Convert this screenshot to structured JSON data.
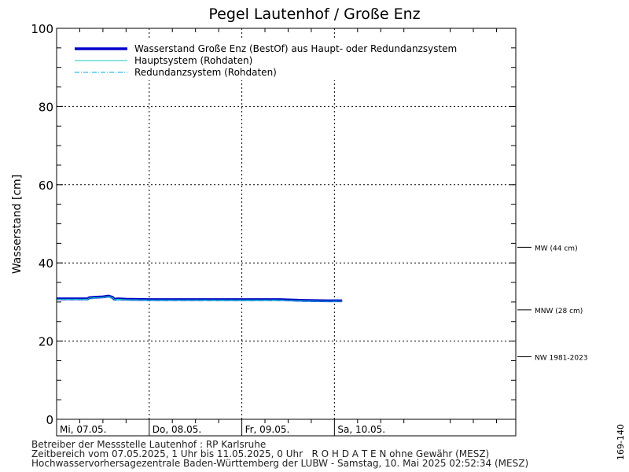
{
  "chart_data": {
    "type": "line",
    "title": "Pegel Lautenhof / Große Enz",
    "ylabel": "Wasserstand [cm]",
    "xlabel": "",
    "ylim": [
      0,
      100
    ],
    "xlim_hours": [
      0,
      119
    ],
    "y_ticks": [
      0,
      20,
      40,
      60,
      80,
      100
    ],
    "x_ticks": [
      {
        "hour": 0,
        "label": "Mi, 07.05."
      },
      {
        "hour": 24,
        "label": "Do, 08.05."
      },
      {
        "hour": 48,
        "label": "Fr, 09.05."
      },
      {
        "hour": 72,
        "label": "Sa, 10.05."
      }
    ],
    "grid": true,
    "legend_position": "top-left",
    "legend": [
      {
        "label": "Wasserstand Große Enz  (BestOf)  aus Haupt- oder Redundanzsystem",
        "style": "thick",
        "color": "#0000cc"
      },
      {
        "label": "Hauptsystem (Rohdaten)",
        "style": "solid",
        "color": "#1fc9b0"
      },
      {
        "label": "Redundanzsystem (Rohdaten)",
        "style": "dashdot",
        "color": "#00a8e8"
      }
    ],
    "series": [
      {
        "name": "Wasserstand Große Enz  (BestOf)  aus Haupt- oder Redundanzsystem",
        "color": "#0000cc",
        "points": [
          [
            0,
            30.8
          ],
          [
            4,
            30.8
          ],
          [
            8,
            30.8
          ],
          [
            8.5,
            31.1
          ],
          [
            10,
            31.2
          ],
          [
            12,
            31.3
          ],
          [
            13.5,
            31.5
          ],
          [
            14.5,
            31.2
          ],
          [
            15,
            30.7
          ],
          [
            16,
            30.8
          ],
          [
            18,
            30.7
          ],
          [
            24,
            30.6
          ],
          [
            36,
            30.6
          ],
          [
            48,
            30.6
          ],
          [
            58,
            30.6
          ],
          [
            64,
            30.4
          ],
          [
            70,
            30.3
          ],
          [
            74,
            30.3
          ]
        ]
      },
      {
        "name": "Hauptsystem (Rohdaten)",
        "color": "#1fc9b0",
        "points": [
          [
            0,
            30.7
          ],
          [
            4,
            30.7
          ],
          [
            8,
            30.7
          ],
          [
            8.5,
            31.0
          ],
          [
            10,
            31.1
          ],
          [
            12,
            31.2
          ],
          [
            13.5,
            31.4
          ],
          [
            14.5,
            31.1
          ],
          [
            15,
            30.6
          ],
          [
            16,
            30.7
          ],
          [
            18,
            30.6
          ],
          [
            24,
            30.5
          ],
          [
            36,
            30.5
          ],
          [
            48,
            30.5
          ],
          [
            58,
            30.5
          ],
          [
            64,
            30.3
          ],
          [
            70,
            30.2
          ],
          [
            74,
            30.2
          ]
        ]
      },
      {
        "name": "Redundanzsystem (Rohdaten)",
        "color": "#00a8e8",
        "points": [
          [
            0,
            30.6
          ],
          [
            8,
            30.6
          ],
          [
            10,
            31.0
          ],
          [
            12,
            31.1
          ],
          [
            13.5,
            31.3
          ],
          [
            15,
            30.5
          ],
          [
            18,
            30.5
          ],
          [
            24,
            30.4
          ],
          [
            36,
            30.4
          ],
          [
            48,
            30.3
          ],
          [
            58,
            30.4
          ],
          [
            64,
            30.2
          ],
          [
            74,
            30.1
          ]
        ]
      }
    ],
    "reference_lines": [
      {
        "label": "MW (44 cm)",
        "value": 44
      },
      {
        "label": "MNW (28 cm)",
        "value": 28
      },
      {
        "label": "NW 1981-2023",
        "value": 16
      }
    ]
  },
  "footer": {
    "line1": "Betreiber der Messstelle Lautenhof : RP Karlsruhe",
    "line2": "Zeitbereich vom 07.05.2025, 1 Uhr bis 11.05.2025, 0 Uhr   R O H D A T E N ohne Gewähr (MESZ)",
    "line3": "Hochwasservorhersagezentrale Baden-Württemberg der LUBW - Samstag, 10. Mai 2025 02:52:34 (MESZ)"
  },
  "side_id": "169-140"
}
